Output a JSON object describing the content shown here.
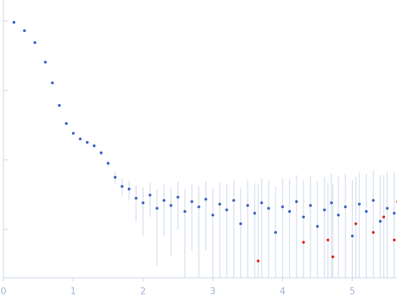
{
  "chart_data": {
    "type": "scatter",
    "ylog": true,
    "grid": false,
    "xlim": [
      0,
      5.64
    ],
    "xticks": [
      0,
      1,
      2,
      3,
      4,
      5
    ],
    "ylim": [
      0.0002,
      2
    ],
    "yticks": [
      1,
      0.1,
      0.01,
      0.001
    ],
    "axis_color": "#c3d0e6",
    "error_color": "#c5d3ea",
    "series": [
      {
        "color": "#3a63c4",
        "x": [
          0.15,
          0.3,
          0.45,
          0.6,
          0.7,
          0.8,
          0.9,
          1.0,
          1.1,
          1.2,
          1.3,
          1.4,
          1.5,
          1.6,
          1.7,
          1.8,
          1.9,
          2.0,
          2.1,
          2.2,
          2.3,
          2.4,
          2.5,
          2.6,
          2.7,
          2.8,
          2.9,
          3.0,
          3.1,
          3.2,
          3.3,
          3.4,
          3.5,
          3.6,
          3.7,
          3.8,
          3.9,
          4.0,
          4.1,
          4.2,
          4.3,
          4.4,
          4.5,
          4.6,
          4.7,
          4.8,
          4.9,
          5.0,
          5.1,
          5.2,
          5.3,
          5.4,
          5.5,
          5.6
        ],
        "values": [
          0.955,
          0.723,
          0.488,
          0.255,
          0.128,
          0.0608,
          0.0333,
          0.0241,
          0.02,
          0.0178,
          0.0159,
          0.0126,
          0.0089,
          0.0056,
          0.00413,
          0.00379,
          0.0028,
          0.0024,
          0.0031,
          0.002,
          0.0026,
          0.0022,
          0.0029,
          0.0018,
          0.0025,
          0.0021,
          0.0027,
          0.0016,
          0.0023,
          0.0019,
          0.0026,
          0.0012,
          0.0022,
          0.0017,
          0.0024,
          0.002,
          0.0009,
          0.0021,
          0.0018,
          0.0025,
          0.0015,
          0.0022,
          0.0011,
          0.0019,
          0.0024,
          0.0016,
          0.0021,
          0.0008,
          0.0023,
          0.0018,
          0.0026,
          0.0013,
          0.002,
          0.0017
        ],
        "errors": [
          0.005,
          0.004,
          0.003,
          0.002,
          0.001,
          0.0006,
          0.0004,
          0.0008,
          0.0008,
          0.0008,
          0.0009,
          0.001,
          0.001,
          0.0011,
          0.0012,
          0.0012,
          0.0015,
          0.0016,
          0.0016,
          0.0017,
          0.0018,
          0.0018,
          0.0019,
          0.002,
          0.002,
          0.0021,
          0.0022,
          0.0023,
          0.0024,
          0.0025,
          0.0026,
          0.0027,
          0.0028,
          0.0029,
          0.003,
          0.0031,
          0.0032,
          0.0033,
          0.0034,
          0.0035,
          0.0036,
          0.0037,
          0.0038,
          0.0039,
          0.004,
          0.0041,
          0.0042,
          0.0043,
          0.0044,
          0.0045,
          0.0046,
          0.0047,
          0.0048,
          0.0049
        ]
      },
      {
        "color": "#e0261c",
        "x": [
          3.65,
          4.3,
          4.65,
          4.72,
          5.05,
          5.3,
          5.45,
          5.6,
          5.65
        ],
        "values": [
          0.00035,
          0.00065,
          0.0007,
          0.0004,
          0.0012,
          0.0009,
          0.0015,
          0.0007,
          0.0025
        ],
        "errors": [
          0.004,
          0.004,
          0.004,
          0.004,
          0.0045,
          0.0045,
          0.0045,
          0.0045,
          0.0045
        ]
      }
    ]
  }
}
